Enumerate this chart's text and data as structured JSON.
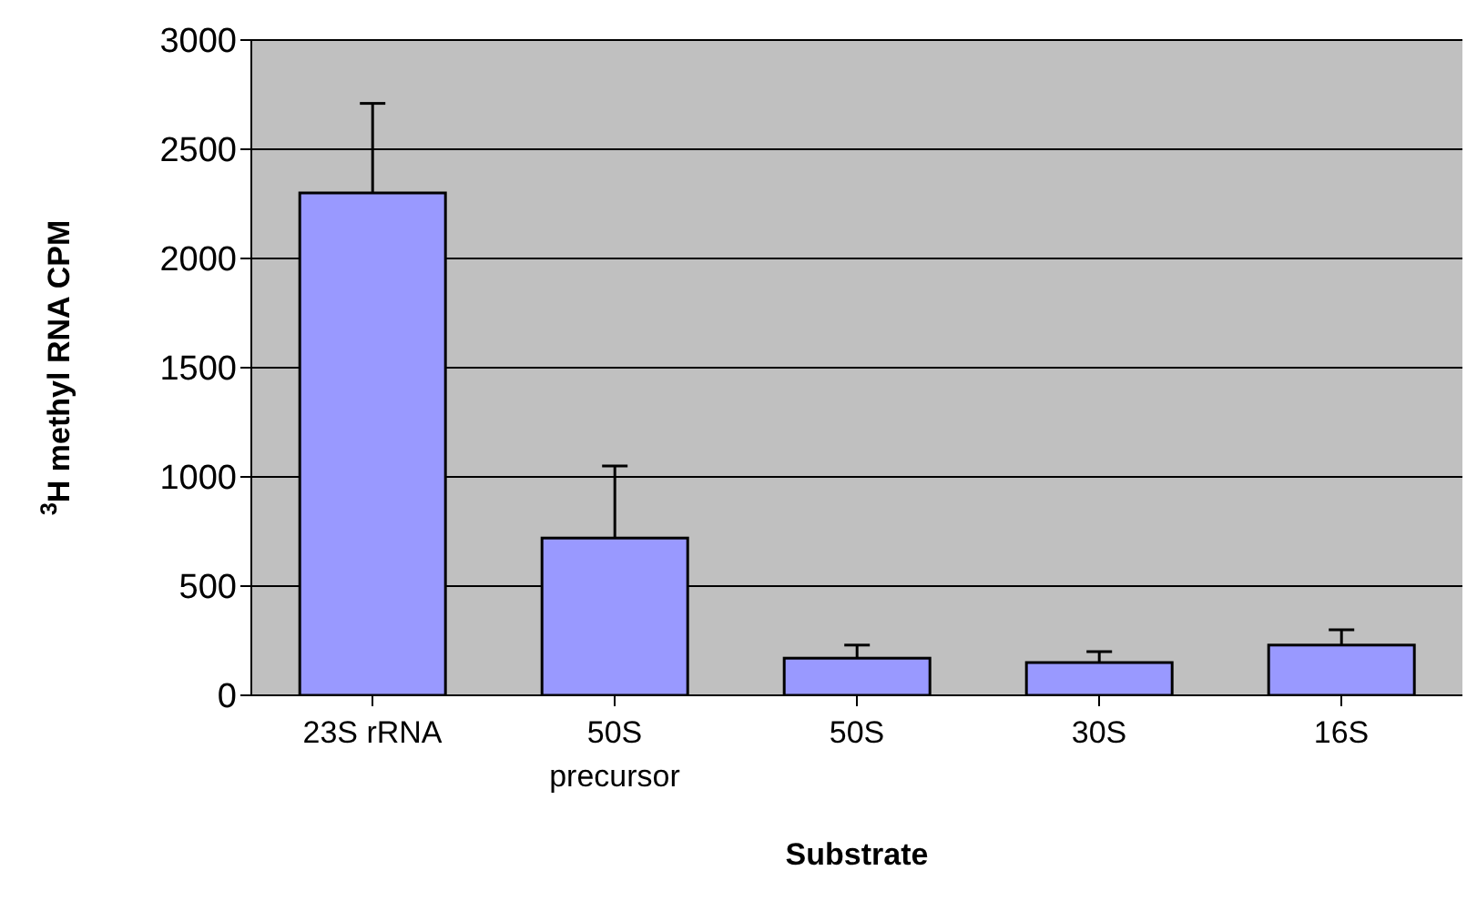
{
  "chart_data": {
    "type": "bar",
    "xlabel": "Substrate",
    "ylabel": "$^{3}$H methyl RNA CPM",
    "categories": [
      "23S rRNA",
      "50S precursor",
      "50S",
      "30S",
      "16S"
    ],
    "values": [
      2300,
      720,
      170,
      150,
      230
    ],
    "errors": [
      [
        2300,
        2710
      ],
      [
        720,
        1050
      ],
      [
        170,
        230
      ],
      [
        150,
        200
      ],
      [
        230,
        300
      ]
    ],
    "color": "#9999ff",
    "ylim": [
      0,
      3000
    ],
    "yticks": [
      0,
      500,
      1000,
      1500,
      2000,
      2500,
      3000
    ],
    "grid": "y"
  }
}
